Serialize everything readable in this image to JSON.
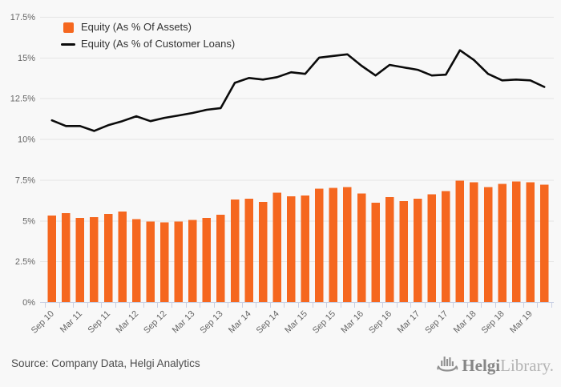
{
  "colors": {
    "background": "#f8f8f8",
    "grid": "#e5e5e5",
    "axis": "#c9d0e4",
    "axis_text": "#666666",
    "legend_text": "#333333",
    "bar": "#f5671f",
    "line": "#0b0b0b",
    "source_text": "#4d4d4d",
    "logo_primary": "#868686",
    "logo_secondary": "#b4b4b4",
    "logo_icon": "#8f8f8f"
  },
  "legend": {
    "items": [
      {
        "label": "Equity (As % Of Assets)",
        "swatch": "square",
        "color": "#f5671f"
      },
      {
        "label": "Equity (As % of Customer Loans)",
        "swatch": "line",
        "color": "#0b0b0b"
      }
    ]
  },
  "footer": {
    "source_label": "Source: Company Data, Helgi Analytics",
    "logo": {
      "icon": "viking-ship-bar-chart-icon",
      "text_primary": "Helgi",
      "text_secondary": "Library."
    }
  },
  "chart_data": {
    "type": "bar",
    "subtype": "bar+line combo, quarterly data, every 2nd category labeled",
    "categories": [
      "Sep 10",
      "Dec 10",
      "Mar 11",
      "Jun 11",
      "Sep 11",
      "Dec 11",
      "Mar 12",
      "Jun 12",
      "Sep 12",
      "Dec 12",
      "Mar 13",
      "Jun 13",
      "Sep 13",
      "Dec 13",
      "Mar 14",
      "Jun 14",
      "Sep 14",
      "Dec 14",
      "Mar 15",
      "Jun 15",
      "Sep 15",
      "Dec 15",
      "Mar 16",
      "Jun 16",
      "Sep 16",
      "Dec 16",
      "Mar 17",
      "Jun 17",
      "Sep 17",
      "Dec 17",
      "Mar 18",
      "Jun 18",
      "Sep 18",
      "Dec 18",
      "Mar 19",
      "Jun 19"
    ],
    "label_step": 2,
    "x_tick_labels": [
      "Sep 10",
      "Mar 11",
      "Sep 11",
      "Mar 12",
      "Sep 12",
      "Mar 13",
      "Sep 13",
      "Mar 14",
      "Sep 14",
      "Mar 15",
      "Sep 15",
      "Mar 16",
      "Sep 16",
      "Mar 17",
      "Sep 17",
      "Mar 18",
      "Sep 18",
      "Mar 19"
    ],
    "series": [
      {
        "name": "Equity (As % Of Assets)",
        "type": "bar",
        "color": "#f5671f",
        "values": [
          5.3,
          5.45,
          5.15,
          5.2,
          5.4,
          5.55,
          5.1,
          4.95,
          4.9,
          4.95,
          5.05,
          5.15,
          5.35,
          6.3,
          6.35,
          6.15,
          6.7,
          6.5,
          6.55,
          6.95,
          7.0,
          7.05,
          6.65,
          6.1,
          6.45,
          6.2,
          6.35,
          6.6,
          6.8,
          7.45,
          7.35,
          7.05,
          7.25,
          7.4,
          7.35,
          7.2
        ]
      },
      {
        "name": "Equity (As % of Customer Loans)",
        "type": "line",
        "color": "#0b0b0b",
        "values": [
          11.15,
          10.8,
          10.8,
          10.5,
          10.85,
          11.1,
          11.4,
          11.1,
          11.3,
          11.45,
          11.6,
          11.8,
          11.9,
          13.45,
          13.75,
          13.65,
          13.8,
          14.1,
          14.0,
          15.0,
          15.1,
          15.2,
          14.5,
          13.9,
          14.55,
          14.4,
          14.25,
          13.9,
          13.95,
          15.45,
          14.85,
          14.0,
          13.6,
          13.65,
          13.6,
          13.2
        ]
      }
    ],
    "title": "",
    "xlabel": "",
    "ylabel": "",
    "ylim": [
      0,
      17.5
    ],
    "yticks": [
      0,
      2.5,
      5,
      7.5,
      10,
      12.5,
      15,
      17.5
    ],
    "ytick_labels": [
      "0%",
      "2.5%",
      "5%",
      "7.5%",
      "10%",
      "12.5%",
      "15%",
      "17.5%"
    ],
    "grid": "horizontal",
    "legend_position": "top-left"
  }
}
